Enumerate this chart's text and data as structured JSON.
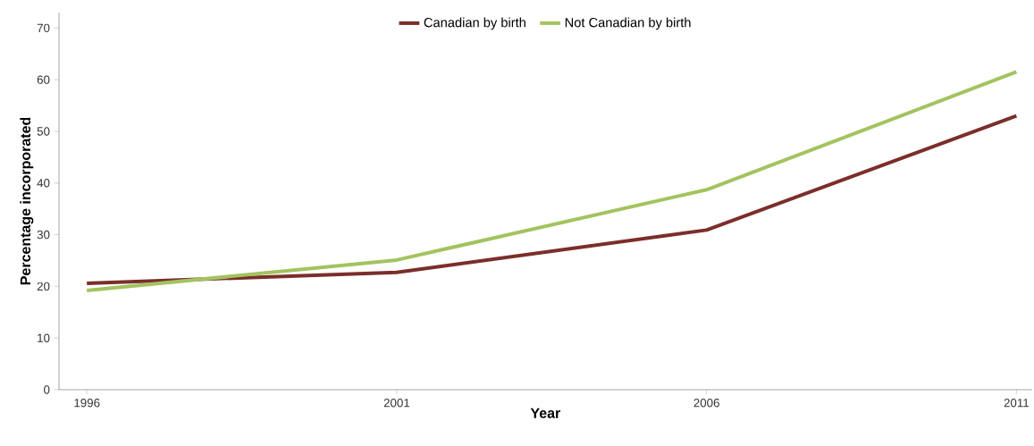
{
  "chart_data": {
    "type": "line",
    "xlabel": "Year",
    "ylabel": "Percentage incorporated",
    "x": [
      1996,
      2001,
      2006,
      2011
    ],
    "series": [
      {
        "name": "Canadian by birth",
        "color": "#7b2e2a",
        "values": [
          20.6,
          22.7,
          30.9,
          53.0
        ]
      },
      {
        "name": "Not Canadian by birth",
        "color": "#a3c35f",
        "values": [
          19.2,
          25.1,
          38.7,
          61.5
        ]
      }
    ],
    "xlim": [
      1995.55,
      2011.25
    ],
    "xticks": [
      1996,
      2001,
      2006,
      2011
    ],
    "ylim": [
      0,
      73
    ],
    "yticks": [
      0,
      10,
      20,
      30,
      40,
      50,
      60,
      70
    ],
    "grid": false,
    "legend": "top",
    "marker": "none",
    "line_style": "solid"
  }
}
